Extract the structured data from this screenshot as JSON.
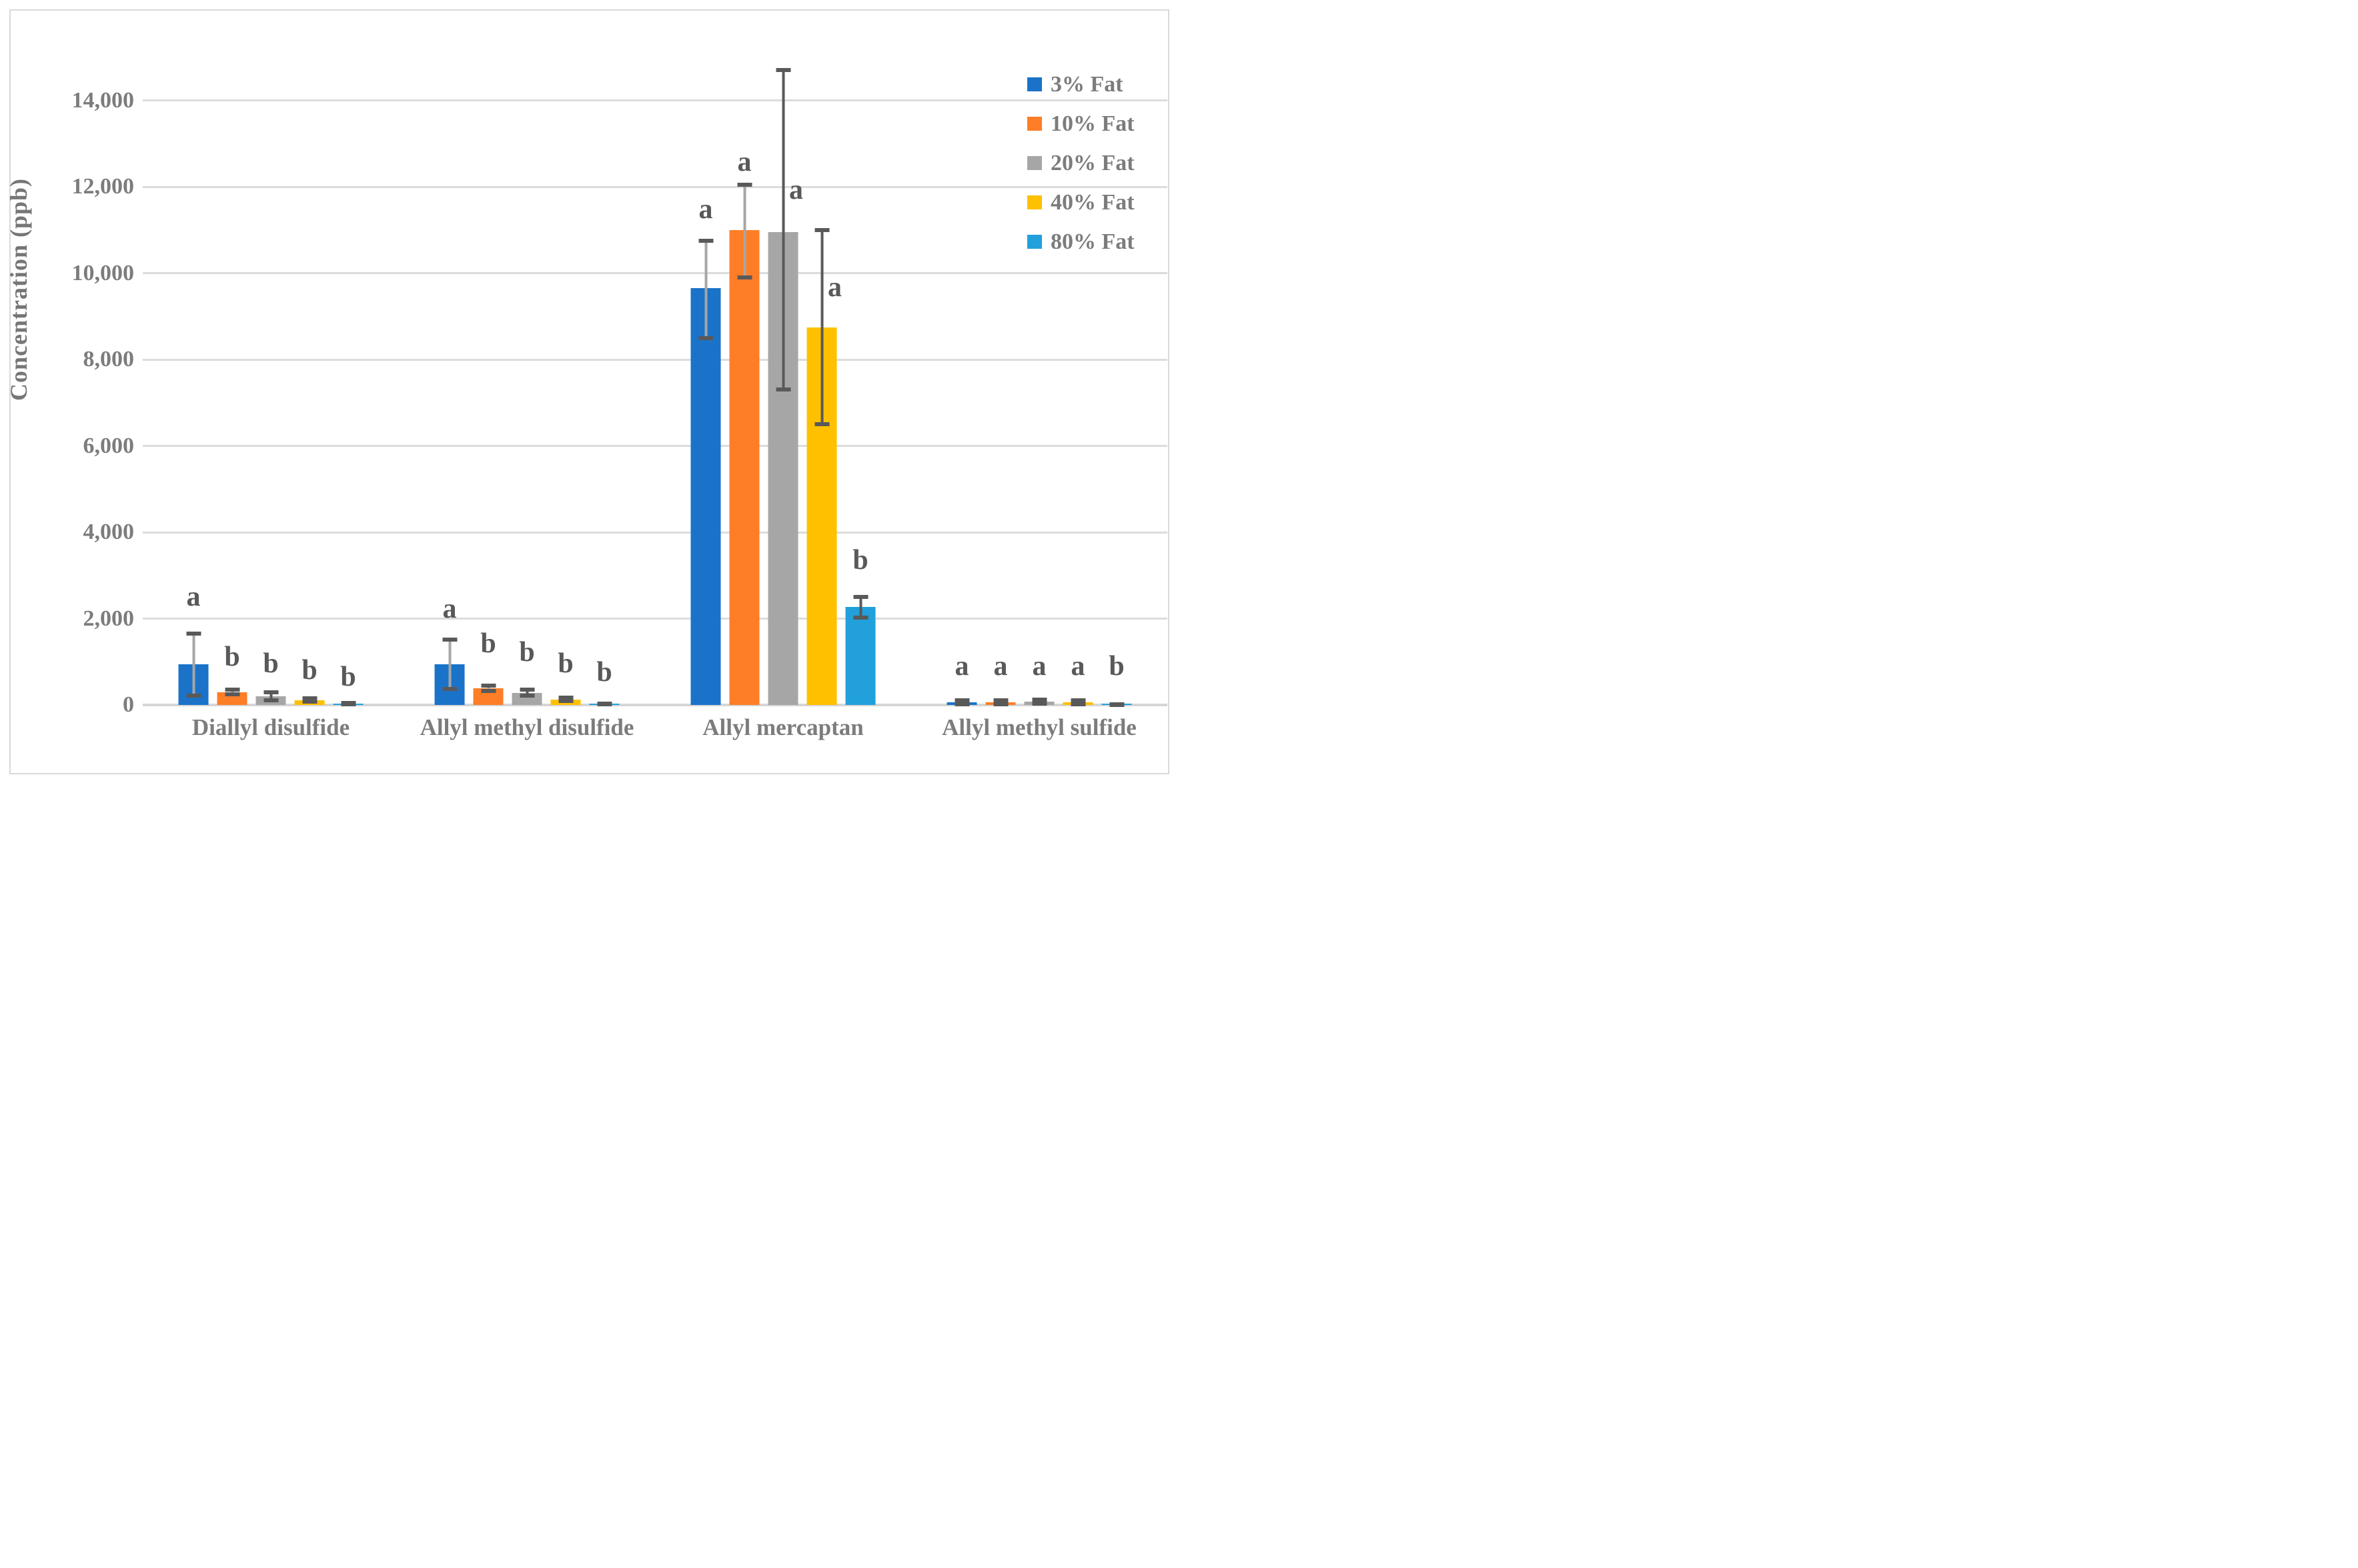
{
  "chart_data": {
    "type": "bar",
    "title": "",
    "ylabel": "Concentration (ppb)",
    "xlabel": "",
    "ylim": [
      0,
      15000
    ],
    "ytick_interval": 2000,
    "yticks": [
      {
        "value": 0,
        "label": "0"
      },
      {
        "value": 2000,
        "label": "2,000"
      },
      {
        "value": 4000,
        "label": "4,000"
      },
      {
        "value": 6000,
        "label": "6,000"
      },
      {
        "value": 8000,
        "label": "8,000"
      },
      {
        "value": 10000,
        "label": "10,000"
      },
      {
        "value": 12000,
        "label": "12,000"
      },
      {
        "value": 14000,
        "label": "14,000"
      }
    ],
    "grid": true,
    "legend_position": "top-right",
    "categories": [
      "Diallyl disulfide",
      "Allyl methyl disulfide",
      "Allyl mercaptan",
      "Allyl methyl sulfide"
    ],
    "series": [
      {
        "name": "3% Fat",
        "color": "#1a73c8",
        "err_line_color": "#a6a6a6",
        "values": [
          950,
          950,
          9650,
          60
        ],
        "err_up": [
          1660,
          1520,
          10750,
          110
        ],
        "err_down": [
          210,
          370,
          8500,
          20
        ],
        "letters": [
          "a",
          "a",
          "a",
          "a"
        ],
        "letter_y": [
          2180,
          1900,
          11150,
          570
        ],
        "letter_pos": [
          "above",
          "above",
          "above",
          "above"
        ]
      },
      {
        "name": "10% Fat",
        "color": "#fd7e26",
        "err_line_color": "#a6a6a6",
        "values": [
          300,
          390,
          11000,
          60
        ],
        "err_up": [
          360,
          450,
          12050,
          110
        ],
        "err_down": [
          240,
          330,
          9900,
          20
        ],
        "letters": [
          "b",
          "b",
          "a",
          "a"
        ],
        "letter_y": [
          790,
          1100,
          12250,
          570
        ],
        "letter_pos": [
          "above",
          "above",
          "above",
          "above"
        ]
      },
      {
        "name": "20% Fat",
        "color": "#a6a6a6",
        "err_line_color": "#595959",
        "values": [
          200,
          280,
          10950,
          70
        ],
        "err_up": [
          290,
          350,
          14700,
          120
        ],
        "err_down": [
          110,
          215,
          7300,
          30
        ],
        "letters": [
          "b",
          "b",
          "a",
          "a"
        ],
        "letter_y": [
          640,
          900,
          11600,
          570
        ],
        "letter_pos": [
          "above",
          "above",
          "right",
          "above"
        ]
      },
      {
        "name": "40% Fat",
        "color": "#ffc000",
        "err_line_color": "#595959",
        "values": [
          110,
          125,
          8750,
          60
        ],
        "err_up": [
          150,
          170,
          11000,
          110
        ],
        "err_down": [
          70,
          90,
          6500,
          20
        ],
        "letters": [
          "b",
          "b",
          "a",
          "a"
        ],
        "letter_y": [
          480,
          640,
          9350,
          570
        ],
        "letter_pos": [
          "above",
          "above",
          "right",
          "above"
        ]
      },
      {
        "name": "80% Fat",
        "color": "#21a0db",
        "err_line_color": "#595959",
        "values": [
          30,
          20,
          2270,
          10
        ],
        "err_up": [
          45,
          35,
          2500,
          15
        ],
        "err_down": [
          15,
          10,
          2030,
          5
        ],
        "letters": [
          "b",
          "b",
          "b",
          "b"
        ],
        "letter_y": [
          330,
          440,
          3030,
          570
        ],
        "letter_pos": [
          "above",
          "above",
          "above",
          "above"
        ]
      }
    ],
    "grid_color": "#dcdcdc",
    "text_color": "#7c7c7c",
    "letter_color": "#595959",
    "border_color": "#d9d9d9"
  }
}
